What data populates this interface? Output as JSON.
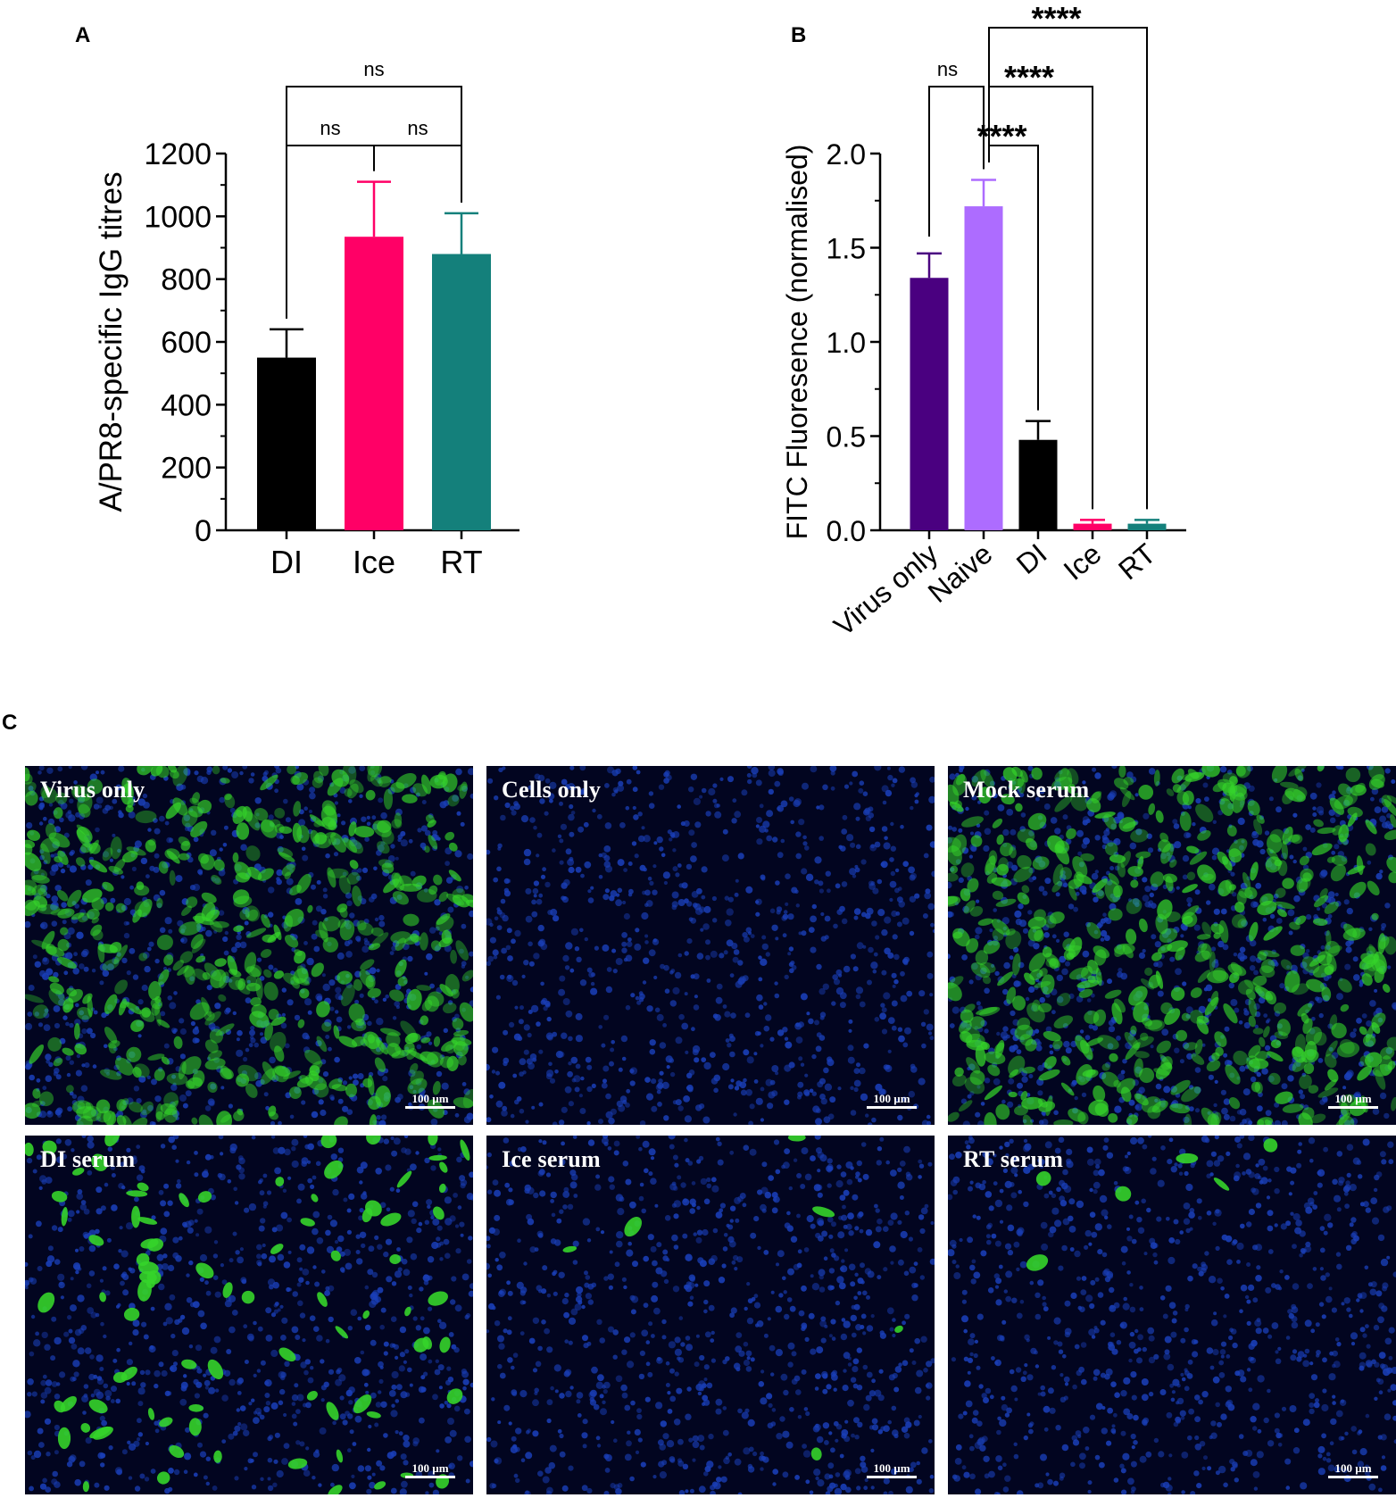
{
  "panels": {
    "a_letter": "A",
    "b_letter": "B",
    "c_letter": "C"
  },
  "chart_data": [
    {
      "panel": "A",
      "type": "bar",
      "ylabel": "A/PR8-specific IgG titres",
      "categories": [
        "DI",
        "Ice",
        "RT"
      ],
      "values": [
        550,
        935,
        880
      ],
      "error": [
        90,
        175,
        130
      ],
      "colors": [
        "#000000",
        "#ff0066",
        "#14807b"
      ],
      "ylim": [
        0,
        1200
      ],
      "yticks": [
        "0",
        "200",
        "400",
        "600",
        "800",
        "1000",
        "1200"
      ],
      "grid": false,
      "significance": [
        {
          "from": "DI",
          "to": "Ice",
          "label": "ns"
        },
        {
          "from": "Ice",
          "to": "RT",
          "label": "ns"
        },
        {
          "from": "DI",
          "to": "RT",
          "label": "ns"
        }
      ]
    },
    {
      "panel": "B",
      "type": "bar",
      "ylabel": "FITC Fluoresence (normalised)",
      "categories": [
        "Virus only",
        "Naive",
        "DI",
        "Ice",
        "RT"
      ],
      "values": [
        1.34,
        1.72,
        0.48,
        0.035,
        0.035
      ],
      "error": [
        0.13,
        0.14,
        0.1,
        0.02,
        0.02
      ],
      "colors": [
        "#4a0080",
        "#ad6cff",
        "#000000",
        "#ff0066",
        "#14807b"
      ],
      "ylim": [
        0,
        2.0
      ],
      "yticks": [
        "0.0",
        "0.5",
        "1.0",
        "1.5",
        "2.0"
      ],
      "grid": false,
      "significance": [
        {
          "from": "Virus only",
          "to": "Naive",
          "label": "ns"
        },
        {
          "from": "Naive",
          "to": "DI",
          "label": "****"
        },
        {
          "from": "Naive",
          "to": "Ice",
          "label": "****"
        },
        {
          "from": "Naive",
          "to": "RT",
          "label": "****"
        }
      ]
    }
  ],
  "micrographs": {
    "scale_label": "100 µm",
    "colors": {
      "background": "#020520",
      "nuclei": "#1a3fb8",
      "infected": "#35d42a"
    },
    "tiles": [
      {
        "label": "Virus only",
        "infection_level": 0.75
      },
      {
        "label": "Cells only",
        "infection_level": 0.0
      },
      {
        "label": "Mock serum",
        "infection_level": 0.8
      },
      {
        "label": "DI serum",
        "infection_level": 0.12
      },
      {
        "label": "Ice serum",
        "infection_level": 0.005
      },
      {
        "label": "RT serum",
        "infection_level": 0.005
      }
    ]
  }
}
